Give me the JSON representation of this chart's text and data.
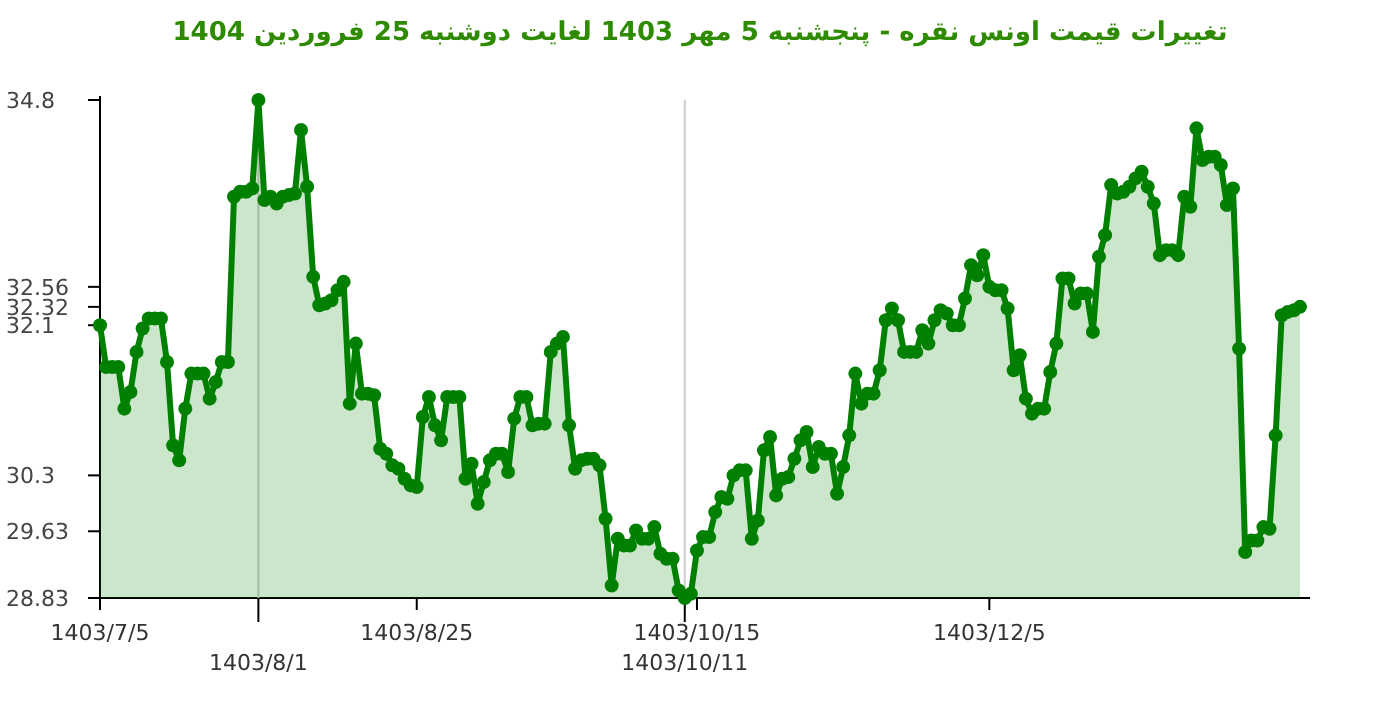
{
  "chart_data": {
    "type": "area",
    "title": "تغییرات قیمت اونس نقره - پنجشنبه 5 مهر 1403 لغایت دوشنبه 25 فروردین 1404",
    "categories": [
      "1403/7/5",
      null,
      null,
      null,
      null,
      null,
      null,
      null,
      null,
      null,
      null,
      null,
      null,
      null,
      null,
      null,
      null,
      null,
      null,
      null,
      null,
      null,
      null,
      null,
      null,
      null,
      "1403/8/1",
      null,
      null,
      null,
      null,
      null,
      null,
      null,
      null,
      null,
      null,
      null,
      null,
      null,
      null,
      null,
      null,
      null,
      null,
      null,
      null,
      null,
      null,
      null,
      null,
      null,
      "1403/8/25",
      null,
      null,
      null,
      null,
      null,
      null,
      null,
      null,
      null,
      null,
      null,
      null,
      null,
      null,
      null,
      null,
      null,
      null,
      null,
      null,
      null,
      null,
      null,
      null,
      null,
      null,
      null,
      null,
      null,
      null,
      null,
      null,
      null,
      null,
      null,
      null,
      null,
      null,
      null,
      null,
      null,
      null,
      null,
      "1403/10/11",
      null,
      "1403/10/15",
      null,
      null,
      null,
      null,
      null,
      null,
      null,
      null,
      null,
      null,
      null,
      null,
      null,
      null,
      null,
      null,
      null,
      null,
      null,
      null,
      null,
      null,
      null,
      null,
      null,
      null,
      null,
      null,
      null,
      null,
      null,
      null,
      null,
      null,
      null,
      null,
      null,
      null,
      null,
      null,
      null,
      null,
      null,
      null,
      null,
      null,
      null,
      "1403/12/5",
      null,
      null,
      null,
      null,
      null,
      null,
      null,
      null,
      null,
      null,
      null,
      null,
      null,
      null,
      null,
      null,
      null,
      null,
      null,
      null,
      null,
      null,
      null,
      null,
      null,
      null,
      null,
      null,
      null,
      null,
      null,
      null,
      null,
      null,
      null,
      null,
      null,
      null,
      null,
      null,
      null,
      null,
      null,
      null,
      null,
      null,
      null,
      null,
      null,
      null,
      null
    ],
    "series": [
      {
        "color": "#008000",
        "values": [
          32.1,
          31.6,
          31.6,
          31.6,
          31.1,
          31.3,
          31.78,
          32.06,
          32.18,
          32.18,
          32.18,
          31.66,
          30.66,
          30.48,
          31.1,
          31.52,
          31.52,
          31.52,
          31.22,
          31.42,
          31.66,
          31.66,
          33.64,
          33.7,
          33.7,
          33.74,
          34.8,
          33.6,
          33.64,
          33.56,
          33.64,
          33.66,
          33.68,
          34.44,
          33.76,
          32.68,
          32.34,
          32.36,
          32.4,
          32.52,
          32.62,
          31.16,
          31.88,
          31.28,
          31.28,
          31.26,
          30.62,
          30.56,
          30.42,
          30.38,
          30.26,
          30.18,
          30.16,
          31.0,
          31.24,
          30.9,
          30.72,
          31.24,
          31.24,
          31.24,
          30.26,
          30.44,
          29.96,
          30.22,
          30.48,
          30.56,
          30.56,
          30.34,
          30.98,
          31.24,
          31.24,
          30.9,
          30.92,
          30.92,
          31.78,
          31.88,
          31.96,
          30.9,
          30.38,
          30.48,
          30.5,
          30.5,
          30.42,
          29.78,
          28.98,
          29.54,
          29.46,
          29.46,
          29.64,
          29.54,
          29.54,
          29.68,
          29.36,
          29.3,
          29.3,
          28.92,
          28.83,
          28.88,
          29.4,
          29.56,
          29.56,
          29.86,
          30.04,
          30.02,
          30.3,
          30.36,
          30.36,
          29.54,
          29.76,
          30.6,
          30.76,
          30.06,
          30.26,
          30.28,
          30.5,
          30.72,
          30.82,
          30.4,
          30.64,
          30.56,
          30.56,
          30.08,
          30.4,
          30.78,
          31.52,
          31.16,
          31.28,
          31.28,
          31.56,
          32.16,
          32.3,
          32.16,
          31.78,
          31.78,
          31.78,
          32.04,
          31.88,
          32.16,
          32.28,
          32.24,
          32.1,
          32.1,
          32.42,
          32.82,
          32.7,
          32.94,
          32.56,
          32.52,
          32.52,
          32.3,
          31.56,
          31.74,
          31.22,
          31.04,
          31.1,
          31.1,
          31.54,
          31.88,
          32.66,
          32.66,
          32.36,
          32.48,
          32.48,
          32.02,
          32.92,
          33.18,
          33.78,
          33.68,
          33.7,
          33.76,
          33.86,
          33.94,
          33.76,
          33.56,
          32.94,
          33.0,
          33.0,
          32.94,
          33.64,
          33.52,
          34.46,
          34.08,
          34.12,
          34.12,
          34.02,
          33.54,
          33.74,
          31.82,
          29.38,
          29.52,
          29.52,
          29.68,
          29.66,
          30.78,
          32.22,
          32.26,
          32.28,
          32.32
        ]
      }
    ],
    "ylim": [
      28.83,
      34.8
    ],
    "yticks": [
      28.83,
      29.63,
      30.3,
      32.1,
      32.32,
      32.56,
      34.8
    ],
    "marker": "circle"
  }
}
